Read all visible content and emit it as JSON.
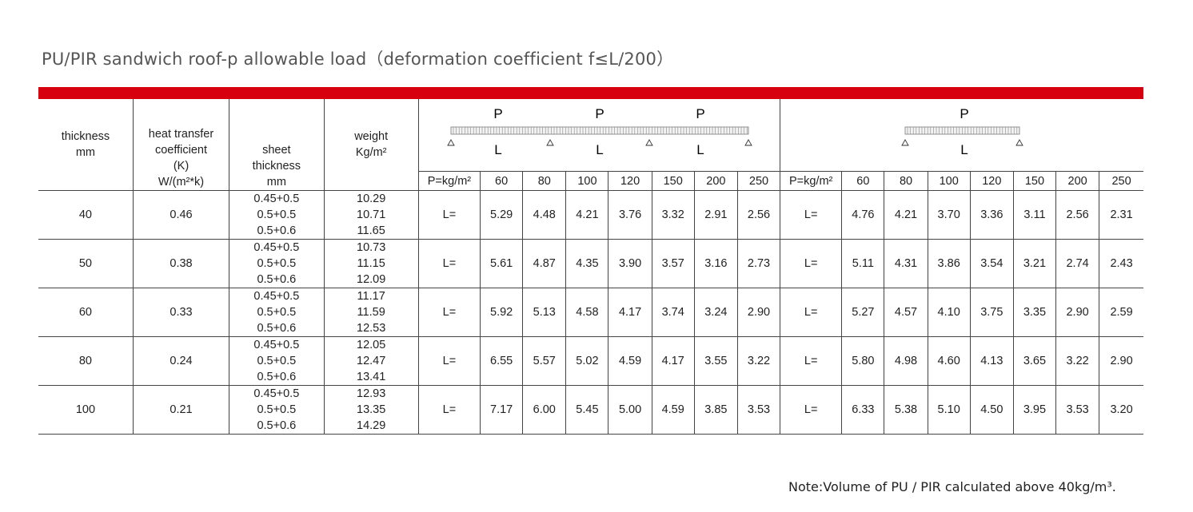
{
  "title": "PU/PIR sandwich roof-p allowable load（deformation coefficient f≤L/200）",
  "note": "Note:Volume of PU / PIR calculated above 40kg/m³.",
  "headers": {
    "thickness": [
      "thickness",
      "mm"
    ],
    "heat": [
      "heat transfer",
      "coefficient",
      "(K)",
      "W/(m²*k)"
    ],
    "sheet": [
      "sheet",
      "thickness",
      "mm"
    ],
    "weight": [
      "weight",
      "Kg/m²"
    ]
  },
  "diagram_labels": {
    "load": "P",
    "span": "L"
  },
  "load_label": "P=kg/m²",
  "span_label": "L=",
  "loads": [
    "60",
    "80",
    "100",
    "120",
    "150",
    "200",
    "250"
  ],
  "rows": [
    {
      "thickness": "40",
      "k": "0.46",
      "sheets": [
        "0.45+0.5",
        "0.5+0.5",
        "0.5+0.6"
      ],
      "weights": [
        "10.29",
        "10.71",
        "11.65"
      ],
      "multi": [
        "5.29",
        "4.48",
        "4.21",
        "3.76",
        "3.32",
        "2.91",
        "2.56"
      ],
      "single": [
        "4.76",
        "4.21",
        "3.70",
        "3.36",
        "3.11",
        "2.56",
        "2.31"
      ]
    },
    {
      "thickness": "50",
      "k": "0.38",
      "sheets": [
        "0.45+0.5",
        "0.5+0.5",
        "0.5+0.6"
      ],
      "weights": [
        "10.73",
        "11.15",
        "12.09"
      ],
      "multi": [
        "5.61",
        "4.87",
        "4.35",
        "3.90",
        "3.57",
        "3.16",
        "2.73"
      ],
      "single": [
        "5.11",
        "4.31",
        "3.86",
        "3.54",
        "3.21",
        "2.74",
        "2.43"
      ]
    },
    {
      "thickness": "60",
      "k": "0.33",
      "sheets": [
        "0.45+0.5",
        "0.5+0.5",
        "0.5+0.6"
      ],
      "weights": [
        "11.17",
        "11.59",
        "12.53"
      ],
      "multi": [
        "5.92",
        "5.13",
        "4.58",
        "4.17",
        "3.74",
        "3.24",
        "2.90"
      ],
      "single": [
        "5.27",
        "4.57",
        "4.10",
        "3.75",
        "3.35",
        "2.90",
        "2.59"
      ]
    },
    {
      "thickness": "80",
      "k": "0.24",
      "sheets": [
        "0.45+0.5",
        "0.5+0.5",
        "0.5+0.6"
      ],
      "weights": [
        "12.05",
        "12.47",
        "13.41"
      ],
      "multi": [
        "6.55",
        "5.57",
        "5.02",
        "4.59",
        "4.17",
        "3.55",
        "3.22"
      ],
      "single": [
        "5.80",
        "4.98",
        "4.60",
        "4.13",
        "3.65",
        "3.22",
        "2.90"
      ]
    },
    {
      "thickness": "100",
      "k": "0.21",
      "sheets": [
        "0.45+0.5",
        "0.5+0.5",
        "0.5+0.6"
      ],
      "weights": [
        "12.93",
        "13.35",
        "14.29"
      ],
      "multi": [
        "7.17",
        "6.00",
        "5.45",
        "5.00",
        "4.59",
        "3.85",
        "3.53"
      ],
      "single": [
        "6.33",
        "5.38",
        "5.10",
        "4.50",
        "3.95",
        "3.53",
        "3.20"
      ]
    }
  ],
  "colors": {
    "accent_bar": "#d7000f",
    "lines": "#444444",
    "text": "#222222",
    "title": "#555555"
  }
}
